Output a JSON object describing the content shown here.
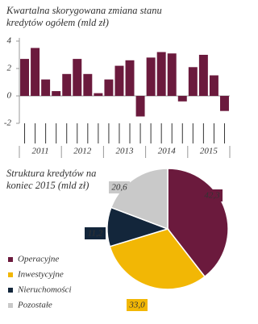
{
  "chart_data": [
    {
      "type": "bar",
      "title": "Kwartalna skorygowana zmiana stanu kredytów ogółem (mld zł)",
      "categories": [
        null,
        null,
        null,
        null,
        null,
        null,
        null,
        null,
        null,
        null,
        null,
        null,
        null,
        null,
        null,
        null,
        null,
        null,
        null,
        null
      ],
      "groups": [
        "2011",
        "2012",
        "2013",
        "2014",
        "2015"
      ],
      "values": [
        2.7,
        3.5,
        1.2,
        0.35,
        1.6,
        2.7,
        1.6,
        0.2,
        1.2,
        2.2,
        2.6,
        -1.5,
        2.8,
        3.2,
        3.1,
        -0.4,
        2.1,
        3.0,
        1.5,
        -1.1
      ],
      "color": "#6b1a3d",
      "ylim": [
        -2,
        4
      ],
      "yticks": [
        -2,
        0,
        2,
        4
      ]
    },
    {
      "type": "pie",
      "title": "Struktura kredytów na koniec 2015 (mld zł)",
      "categories": [
        "Operacyjne",
        "Inwestycyjne",
        "Nieruchomości",
        "Pozostałe"
      ],
      "values": [
        42.3,
        33.0,
        11.2,
        20.6
      ],
      "value_labels": [
        "42,3",
        "33,0",
        "11,2",
        "20,6"
      ],
      "colors": [
        "#6b1a3d",
        "#f2b705",
        "#13263b",
        "#c9c9c9"
      ]
    }
  ]
}
